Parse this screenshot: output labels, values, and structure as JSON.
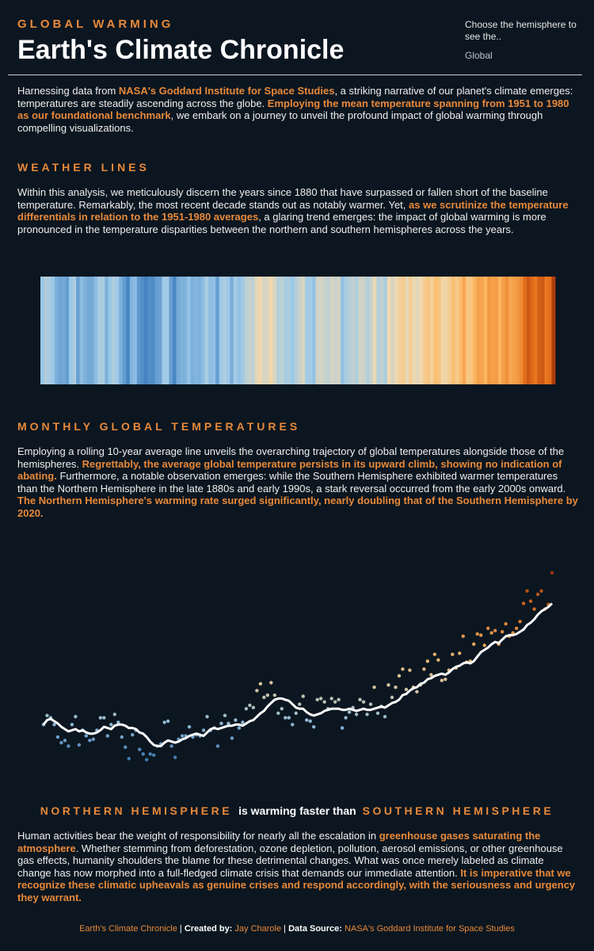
{
  "header": {
    "kicker": "GLOBAL WARMING",
    "title": "Earth's Climate Chronicle"
  },
  "dropdown": {
    "label": "Choose the hemisphere to see the..",
    "value": "Global"
  },
  "intro": [
    {
      "text": "Harnessing data from "
    },
    {
      "text": "NASA's Goddard Institute for Space Studies",
      "em": true
    },
    {
      "text": ", a striking narrative of our planet's climate emerges: temperatures are steadily ascending across the globe. "
    },
    {
      "text": "Employing the mean temperature spanning from 1951 to 1980 as our foundational benchmark",
      "em": true
    },
    {
      "text": ", we embark on a journey to unveil the profound impact of global warming through compelling visualizations."
    }
  ],
  "section_1": {
    "heading": "WEATHER LINES",
    "body": [
      {
        "text": "Within this analysis, we meticulously discern the years since 1880 that have surpassed or fallen short of the baseline temperature. Remarkably, the most recent decade stands out as notably warmer. Yet, "
      },
      {
        "text": "as we scrutinize the temperature differentials in relation to the 1951-1980 averages",
        "em": true
      },
      {
        "text": ", a glaring trend emerges: the impact of global warming is more pronounced in the temperature disparities between the northern and southern hemispheres across the years."
      }
    ]
  },
  "section_2": {
    "heading": "MONTHLY GLOBAL TEMPERATURES",
    "body": [
      {
        "text": "Employing a rolling 10-year average line unveils the overarching trajectory of global temperatures alongside those of the hemispheres. "
      },
      {
        "text": "Regrettably, the average global temperature persists in its upward climb, showing no indication of abating.",
        "em": true
      },
      {
        "text": " Furthermore, a notable observation emerges: while the Southern Hemisphere exhibited warmer temperatures than the Northern Hemisphere in the late 1880s and early 1990s, a stark reversal occurred from the early 2000s onward. "
      },
      {
        "text": "The Northern Hemisphere's warming rate surged significantly, nearly doubling that of the Southern Hemisphere by 2020.",
        "em": true
      }
    ]
  },
  "section_3": {
    "heading": [
      {
        "text": "NORTHERN HEMISPHERE",
        "em": true
      },
      {
        "text": "is warming faster than"
      },
      {
        "text": "SOUTHERN HEMISPHERE",
        "em": true
      }
    ],
    "body": [
      {
        "text": "Human activities bear the weight of responsibility for nearly all the escalation in "
      },
      {
        "text": "greenhouse gases saturating the atmosphere",
        "em": true
      },
      {
        "text": ". Whether stemming from deforestation, ozone depletion, pollution, aerosol emissions, or other greenhouse gas effects, humanity shoulders the blame for these detrimental changes. What was once merely labeled as climate change has now morphed into a full-fledged climate crisis that demands our immediate attention. "
      },
      {
        "text": "It is imperative that we recognize these climatic upheavals as genuine crises and respond accordingly, with the seriousness and urgency they warrant.",
        "em": true
      }
    ]
  },
  "footer": [
    {
      "text": "Earth's Climate Chronicle",
      "em": true
    },
    {
      "text": " | "
    },
    {
      "text": "Created by: ",
      "strong": true
    },
    {
      "text": "Jay Charole",
      "em": true
    },
    {
      "text": " | "
    },
    {
      "text": "Data Source: ",
      "strong": true
    },
    {
      "text": "NASA's Goddard Institute for Space Studies",
      "em": true
    }
  ],
  "chart_data": [
    {
      "type": "stripes",
      "colormap": [
        "#3f7fbf",
        "#9ecae9",
        "#f0d9b0",
        "#fdb863",
        "#e8741e",
        "#a8380a"
      ],
      "clim": [
        -0.5,
        1.2
      ],
      "values": [
        -0.17,
        -0.09,
        -0.11,
        -0.17,
        -0.28,
        -0.33,
        -0.31,
        -0.36,
        -0.17,
        -0.1,
        -0.35,
        -0.22,
        -0.27,
        -0.31,
        -0.3,
        -0.22,
        -0.11,
        -0.11,
        -0.27,
        -0.17,
        -0.08,
        -0.15,
        -0.28,
        -0.37,
        -0.47,
        -0.26,
        -0.22,
        -0.39,
        -0.43,
        -0.48,
        -0.43,
        -0.44,
        -0.36,
        -0.34,
        -0.15,
        -0.14,
        -0.36,
        -0.46,
        -0.3,
        -0.27,
        -0.27,
        -0.19,
        -0.28,
        -0.26,
        -0.27,
        -0.22,
        -0.1,
        -0.22,
        -0.2,
        -0.36,
        -0.16,
        -0.09,
        -0.16,
        -0.29,
        -0.13,
        -0.2,
        -0.15,
        -0.03,
        0.0,
        -0.02,
        0.13,
        0.19,
        0.07,
        0.09,
        0.2,
        0.09,
        -0.07,
        -0.03,
        -0.11,
        -0.11,
        -0.17,
        -0.07,
        0.01,
        0.08,
        -0.13,
        -0.14,
        -0.19,
        0.05,
        0.06,
        0.03,
        -0.03,
        0.06,
        0.03,
        0.05,
        -0.2,
        -0.11,
        -0.06,
        -0.02,
        -0.08,
        0.05,
        0.03,
        -0.08,
        0.01,
        0.16,
        -0.07,
        -0.01,
        -0.1,
        0.18,
        0.07,
        0.16,
        0.26,
        0.32,
        0.14,
        0.31,
        0.16,
        0.12,
        0.18,
        0.32,
        0.39,
        0.27,
        0.45,
        0.4,
        0.22,
        0.23,
        0.31,
        0.45,
        0.33,
        0.46,
        0.61,
        0.38,
        0.39,
        0.54,
        0.63,
        0.62,
        0.53,
        0.68,
        0.64,
        0.66,
        0.54,
        0.65,
        0.72,
        0.61,
        0.64,
        0.68,
        0.74,
        0.9,
        1.01,
        0.92,
        0.85,
        0.98,
        1.01,
        0.85,
        0.89,
        1.17
      ]
    },
    {
      "type": "scatter-line",
      "ylim": [
        -0.7,
        1.4
      ],
      "colormap": [
        "#3f7fbf",
        "#9ecae9",
        "#f0d9b0",
        "#fdb863",
        "#e8741e",
        "#a8380a"
      ],
      "clim": [
        -0.5,
        1.2
      ],
      "series": [
        {
          "values": [
            -0.17,
            -0.09,
            -0.11,
            -0.17,
            -0.28,
            -0.33,
            -0.31,
            -0.36,
            -0.17,
            -0.1,
            -0.35,
            -0.22,
            -0.27,
            -0.31,
            -0.3,
            -0.22,
            -0.11,
            -0.11,
            -0.27,
            -0.17,
            -0.08,
            -0.15,
            -0.28,
            -0.37,
            -0.47,
            -0.26,
            -0.22,
            -0.39,
            -0.43,
            -0.48,
            -0.43,
            -0.44,
            -0.36,
            -0.34,
            -0.15,
            -0.14,
            -0.36,
            -0.46,
            -0.3,
            -0.27,
            -0.27,
            -0.19,
            -0.28,
            -0.26,
            -0.27,
            -0.22,
            -0.1,
            -0.22,
            -0.2,
            -0.36,
            -0.16,
            -0.09,
            -0.16,
            -0.29,
            -0.13,
            -0.2,
            -0.15,
            -0.03,
            0.0,
            -0.02,
            0.13,
            0.19,
            0.07,
            0.09,
            0.2,
            0.09,
            -0.07,
            -0.03,
            -0.11,
            -0.11,
            -0.17,
            -0.07,
            0.01,
            0.08,
            -0.13,
            -0.14,
            -0.19,
            0.05,
            0.06,
            0.03,
            -0.03,
            0.06,
            0.03,
            0.05,
            -0.2,
            -0.11,
            -0.06,
            -0.02,
            -0.08,
            0.05,
            0.03,
            -0.08,
            0.01,
            0.16,
            -0.07,
            -0.01,
            -0.1,
            0.18,
            0.07,
            0.16,
            0.26,
            0.32,
            0.14,
            0.31,
            0.16,
            0.12,
            0.18,
            0.32,
            0.39,
            0.27,
            0.45,
            0.4,
            0.22,
            0.23,
            0.31,
            0.45,
            0.33,
            0.46,
            0.61,
            0.38,
            0.39,
            0.54,
            0.63,
            0.62,
            0.53,
            0.68,
            0.64,
            0.66,
            0.54,
            0.65,
            0.72,
            0.61,
            0.64,
            0.68,
            0.74,
            0.9,
            1.01,
            0.92,
            0.85,
            0.98,
            1.01,
            0.85,
            0.89,
            1.17
          ]
        },
        {
          "color": "#ffffff",
          "values": [
            -0.17,
            -0.13,
            -0.12,
            -0.14,
            -0.16,
            -0.19,
            -0.21,
            -0.23,
            -0.22,
            -0.21,
            -0.23,
            -0.22,
            -0.24,
            -0.25,
            -0.25,
            -0.24,
            -0.22,
            -0.19,
            -0.2,
            -0.21,
            -0.18,
            -0.17,
            -0.17,
            -0.18,
            -0.2,
            -0.2,
            -0.21,
            -0.24,
            -0.25,
            -0.28,
            -0.32,
            -0.35,
            -0.36,
            -0.36,
            -0.33,
            -0.31,
            -0.32,
            -0.33,
            -0.32,
            -0.3,
            -0.29,
            -0.27,
            -0.26,
            -0.25,
            -0.26,
            -0.27,
            -0.24,
            -0.21,
            -0.2,
            -0.21,
            -0.2,
            -0.19,
            -0.18,
            -0.18,
            -0.17,
            -0.17,
            -0.18,
            -0.16,
            -0.14,
            -0.13,
            -0.1,
            -0.07,
            -0.05,
            -0.01,
            0.02,
            0.05,
            0.06,
            0.06,
            0.05,
            0.04,
            0.01,
            -0.02,
            -0.03,
            -0.03,
            -0.06,
            -0.08,
            -0.09,
            -0.08,
            -0.07,
            -0.05,
            -0.04,
            -0.03,
            -0.03,
            -0.03,
            -0.04,
            -0.04,
            -0.03,
            -0.04,
            -0.05,
            -0.04,
            -0.03,
            -0.04,
            -0.04,
            -0.03,
            -0.02,
            -0.01,
            -0.02,
            0.0,
            0.02,
            0.03,
            0.05,
            0.09,
            0.1,
            0.13,
            0.15,
            0.16,
            0.19,
            0.2,
            0.23,
            0.24,
            0.26,
            0.27,
            0.28,
            0.27,
            0.29,
            0.32,
            0.34,
            0.35,
            0.37,
            0.38,
            0.37,
            0.39,
            0.43,
            0.47,
            0.49,
            0.51,
            0.54,
            0.56,
            0.55,
            0.58,
            0.61,
            0.62,
            0.62,
            0.63,
            0.65,
            0.67,
            0.71,
            0.73,
            0.76,
            0.8,
            0.83,
            0.85,
            0.87,
            0.9
          ]
        }
      ]
    }
  ]
}
